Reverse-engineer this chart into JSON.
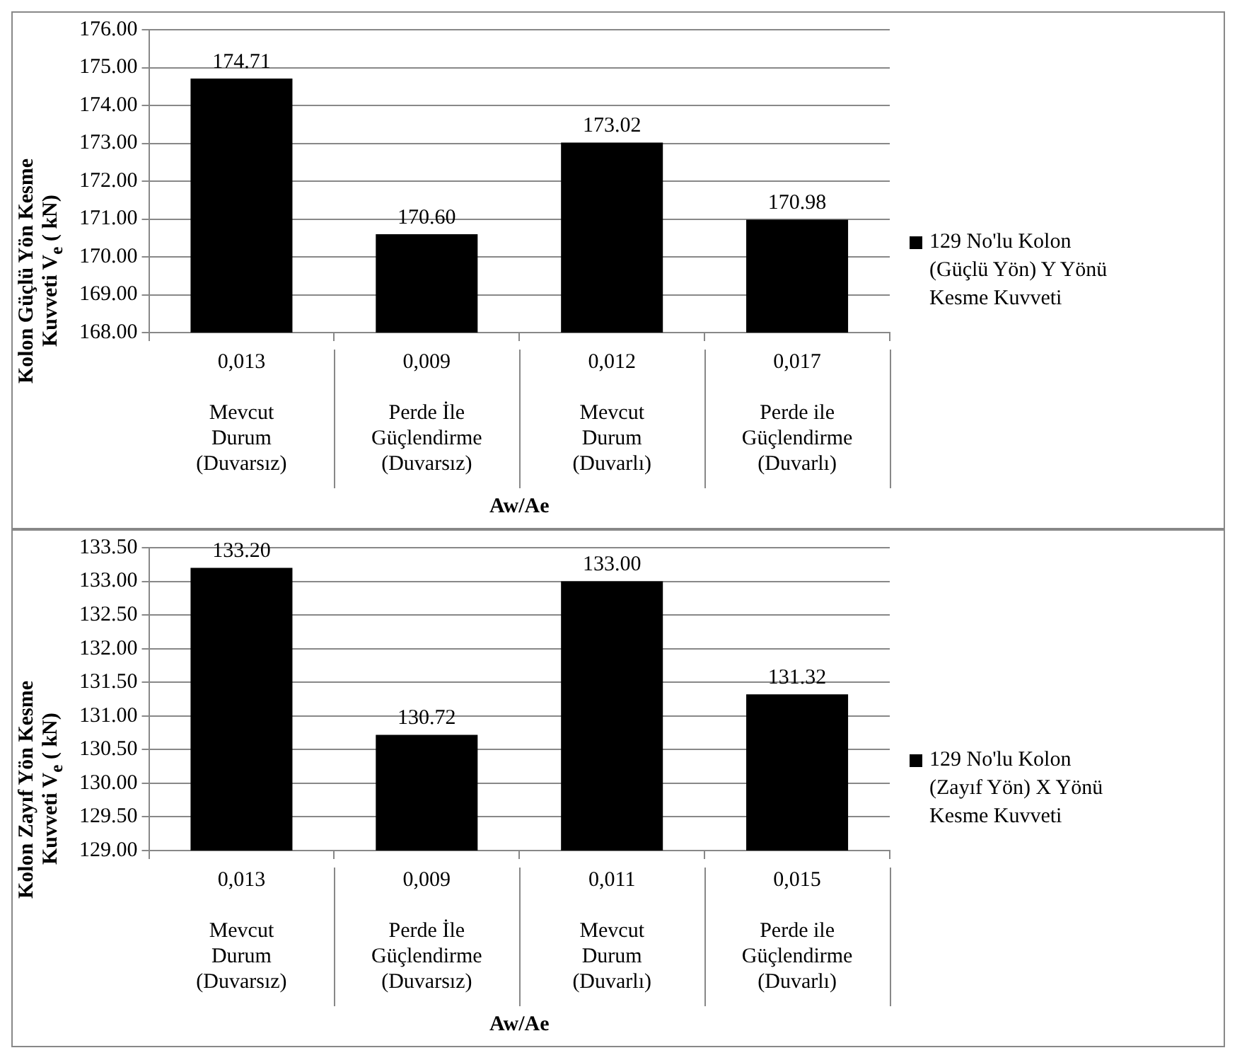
{
  "chart_data": [
    {
      "type": "bar",
      "xlabel": "Aw/Ae",
      "ylabel": "Kolon Güçlü Yön Kesme Kuvveti V$_{e}$ ( kN)",
      "categories": [
        "0,013\nMevcut Durum (Duvarsız)",
        "0,009\nPerde İle Güçlendirme (Duvarsız)",
        "0,012\nMevcut Durum (Duvarlı)",
        "0,017\nPerde ile Güçlendirme (Duvarlı)"
      ],
      "series": [
        {
          "name": "129 No'lu Kolon (Güçlü Yön) Y Yönü Kesme Kuvveti",
          "color": "#000000",
          "values": [
            174.71,
            170.6,
            173.02,
            170.98
          ],
          "value_labels": [
            "174.71",
            "170.60",
            "173.02",
            "170.98"
          ]
        }
      ],
      "ylim": [
        168,
        176
      ],
      "yticks": [
        {
          "value": 168,
          "label": "168.00"
        },
        {
          "value": 169,
          "label": "169.00"
        },
        {
          "value": 170,
          "label": "170.00"
        },
        {
          "value": 171,
          "label": "171.00"
        },
        {
          "value": 172,
          "label": "172.00"
        },
        {
          "value": 173,
          "label": "173.00"
        },
        {
          "value": 174,
          "label": "174.00"
        },
        {
          "value": 175,
          "label": "175.00"
        },
        {
          "value": 176,
          "label": "176.00"
        }
      ],
      "grid": "y",
      "legend": "right"
    },
    {
      "type": "bar",
      "xlabel": "Aw/Ae",
      "ylabel": "Kolon Zayıf Yön Kesme Kuvveti V$_{e}$ ( kN)",
      "categories": [
        "0,013\nMevcut Durum (Duvarsız)",
        "0,009\nPerde İle Güçlendirme (Duvarsız)",
        "0,011\nMevcut Durum (Duvarlı)",
        "0,015\nPerde ile Güçlendirme (Duvarlı)"
      ],
      "series": [
        {
          "name": "129 No'lu Kolon (Zayıf Yön) X Yönü Kesme Kuvveti",
          "color": "#000000",
          "values": [
            133.2,
            130.72,
            133.0,
            131.32
          ],
          "value_labels": [
            "133.20",
            "130.72",
            "133.00",
            "131.32"
          ]
        }
      ],
      "ylim": [
        129,
        133.5
      ],
      "yticks": [
        {
          "value": 129,
          "label": "129.00"
        },
        {
          "value": 129.5,
          "label": "129.50"
        },
        {
          "value": 130,
          "label": "130.00"
        },
        {
          "value": 130.5,
          "label": "130.50"
        },
        {
          "value": 131,
          "label": "131.00"
        },
        {
          "value": 131.5,
          "label": "131.50"
        },
        {
          "value": 132,
          "label": "132.00"
        },
        {
          "value": 132.5,
          "label": "132.50"
        },
        {
          "value": 133,
          "label": "133.00"
        },
        {
          "value": 133.5,
          "label": "133.50"
        }
      ],
      "grid": "y",
      "legend": "right"
    }
  ]
}
